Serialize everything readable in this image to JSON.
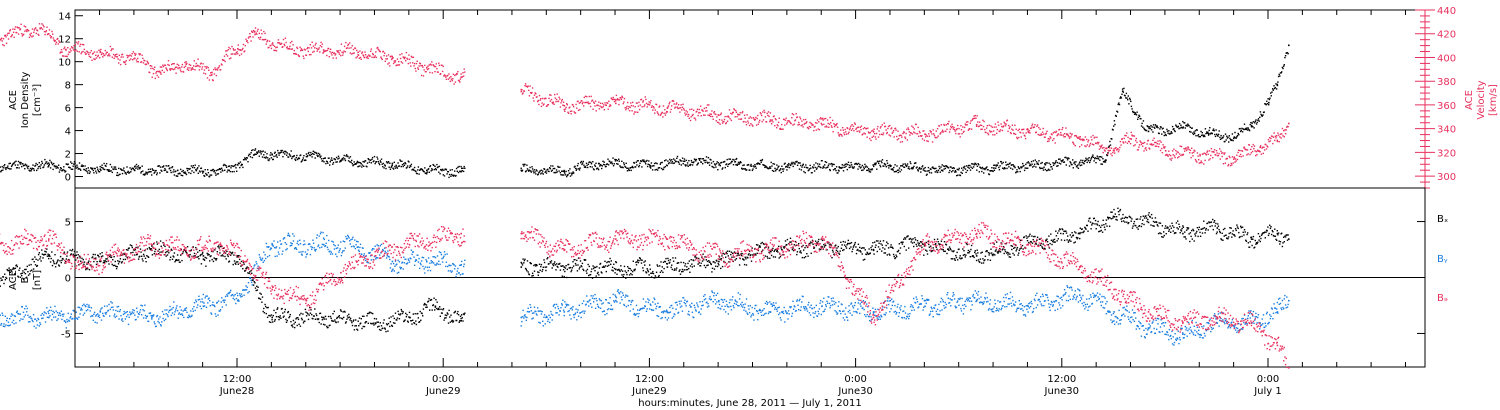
{
  "chart_data": [
    {
      "type": "scatter",
      "panel": "top",
      "ylabel": [
        "ACE",
        "Ion Density",
        "[cm⁻³]"
      ],
      "ylabel_right": [
        "ACE",
        "Velocity",
        "[km/s]"
      ],
      "ylim": [
        -1,
        14.5
      ],
      "yticks": [
        0,
        2,
        4,
        6,
        8,
        10,
        12,
        14
      ],
      "ylim_right": [
        290,
        440
      ],
      "yticks_right": [
        300,
        320,
        340,
        360,
        380,
        400,
        420,
        440
      ],
      "data_gap": [
        "June29 01:15",
        "June29 04:30"
      ],
      "series": [
        {
          "color": "#000000",
          "axis": "left",
          "x": [
            "June27 22:00",
            "June28 01:00",
            "June28 04:00",
            "June28 06:00",
            "June28 08:30",
            "June28 10:00",
            "June28 11:30",
            "June28 13:00",
            "June28 14:00",
            "June28 16:00",
            "June28 19:00",
            "June28 21:00",
            "June28 23:00",
            "June29 01:00",
            "June29 04:30",
            "June29 07:00",
            "June29 09:00",
            "June29 12:00",
            "June29 14:00",
            "June29 17:00",
            "June29 20:00",
            "June29 23:00",
            "June30 02:00",
            "June30 05:00",
            "June30 08:00",
            "June30 11:00",
            "June30 13:00",
            "June30 14:30",
            "June30 15:30",
            "June30 17:00",
            "June30 19:00",
            "June30 20:30",
            "June30 22:00",
            "June30 23:00",
            "July1 00:00",
            "July1 00:30",
            "July1 01:10"
          ],
          "y": [
            0.9,
            1.0,
            0.7,
            0.6,
            0.6,
            0.5,
            0.6,
            2.0,
            2.0,
            1.8,
            1.3,
            1.2,
            0.6,
            0.5,
            0.6,
            0.5,
            1.2,
            1.0,
            1.4,
            1.1,
            0.9,
            0.9,
            1.0,
            0.6,
            0.8,
            1.1,
            1.3,
            1.5,
            7.5,
            4.0,
            4.3,
            3.8,
            3.5,
            4.5,
            6.5,
            8.0,
            11.5
          ]
        },
        {
          "color": "#e8305e",
          "axis": "right",
          "x": [
            "June27 22:00",
            "June28 00:30",
            "June28 02:00",
            "June28 04:00",
            "June28 06:00",
            "June28 07:30",
            "June28 09:00",
            "June28 10:30",
            "June28 12:00",
            "June28 13:00",
            "June28 15:00",
            "June28 17:00",
            "June28 19:00",
            "June28 21:00",
            "June28 23:00",
            "June29 01:00",
            "June29 04:30",
            "June29 07:00",
            "June29 10:00",
            "June29 13:00",
            "June29 16:00",
            "June29 19:00",
            "June29 22:00",
            "June30 01:00",
            "June30 04:00",
            "June30 07:00",
            "June30 10:00",
            "June30 13:00",
            "June30 15:00",
            "June30 16:00",
            "June30 18:00",
            "June30 20:00",
            "June30 22:00",
            "June30 23:30",
            "July1 00:30",
            "July1 01:10"
          ],
          "y": [
            417,
            425,
            407,
            405,
            400,
            388,
            395,
            388,
            408,
            420,
            408,
            407,
            405,
            400,
            392,
            384,
            372,
            360,
            362,
            358,
            352,
            348,
            344,
            338,
            336,
            344,
            338,
            332,
            322,
            332,
            322,
            318,
            316,
            325,
            330,
            345
          ]
        }
      ]
    },
    {
      "type": "scatter",
      "panel": "bottom",
      "ylabel": [
        "ACE",
        "B",
        "[nT]"
      ],
      "ylim": [
        -8,
        8
      ],
      "yticks": [
        -5,
        0,
        5
      ],
      "data_gap": [
        "June29 01:15",
        "June29 04:30"
      ],
      "series": [
        {
          "name": "Bₓ",
          "color": "#000000",
          "x": [
            "June27 22:00",
            "June28 01:00",
            "June28 04:00",
            "June28 07:00",
            "June28 10:00",
            "June28 12:00",
            "June28 14:00",
            "June28 17:00",
            "June28 20:00",
            "June28 22:00",
            "June28 23:30",
            "June29 01:00",
            "June29 04:30",
            "June29 07:00",
            "June29 10:00",
            "June29 13:00",
            "June29 16:00",
            "June29 19:00",
            "June29 22:00",
            "June30 01:00",
            "June30 04:00",
            "June30 07:00",
            "June30 10:00",
            "June30 13:00",
            "June30 15:00",
            "June30 17:00",
            "June30 19:00",
            "June30 21:00",
            "June30 23:00",
            "July1 00:30",
            "July1 01:10"
          ],
          "y": [
            -0.5,
            2.0,
            1.5,
            2.5,
            2.0,
            2.0,
            -3.5,
            -3.5,
            -4.0,
            -3.5,
            -2.5,
            -3.8,
            1.0,
            1.0,
            0.8,
            1.0,
            1.5,
            2.5,
            2.8,
            2.5,
            3.0,
            2.0,
            3.0,
            4.0,
            5.5,
            5.0,
            4.0,
            4.5,
            3.5,
            4.0,
            3.5
          ]
        },
        {
          "name": "Bᵧ",
          "color": "#1a7ee0",
          "x": [
            "June27 22:00",
            "June28 01:00",
            "June28 04:00",
            "June28 07:00",
            "June28 10:00",
            "June28 12:00",
            "June28 14:00",
            "June28 17:00",
            "June28 19:00",
            "June28 21:00",
            "June28 23:00",
            "June29 01:00",
            "June29 04:30",
            "June29 07:00",
            "June29 10:00",
            "June29 13:00",
            "June29 16:00",
            "June29 19:00",
            "June29 22:00",
            "June30 01:00",
            "June30 04:00",
            "June30 07:00",
            "June30 10:00",
            "June30 13:00",
            "June30 15:00",
            "June30 17:00",
            "June30 19:00",
            "June30 21:00",
            "June30 23:00",
            "July1 00:30",
            "July1 01:10"
          ],
          "y": [
            -3.5,
            -3.5,
            -3.0,
            -3.5,
            -2.5,
            -2.0,
            3.0,
            3.0,
            2.8,
            1.5,
            1.5,
            1.2,
            -3.5,
            -3.0,
            -2.0,
            -3.0,
            -2.0,
            -3.0,
            -2.5,
            -3.0,
            -2.5,
            -2.0,
            -2.5,
            -1.5,
            -3.0,
            -4.5,
            -5.0,
            -4.0,
            -4.0,
            -3.0,
            -2.0
          ]
        },
        {
          "name": "Bₔ",
          "color": "#e8305e",
          "x": [
            "June27 22:00",
            "June28 01:00",
            "June28 03:00",
            "June28 05:00",
            "June28 07:00",
            "June28 09:00",
            "June28 11:00",
            "June28 12:30",
            "June28 14:00",
            "June28 16:00",
            "June28 18:00",
            "June28 20:00",
            "June28 22:00",
            "June29 01:00",
            "June29 04:30",
            "June29 07:00",
            "June29 10:00",
            "June29 13:00",
            "June29 16:00",
            "June29 19:00",
            "June29 22:00",
            "June30 01:00",
            "June30 04:00",
            "June30 07:00",
            "June30 10:00",
            "June30 13:00",
            "June30 15:00",
            "June30 17:00",
            "June30 19:00",
            "June30 21:00",
            "June30 23:00",
            "July1 00:30",
            "July1 01:10"
          ],
          "y": [
            3.0,
            3.5,
            1.0,
            2.0,
            3.0,
            2.5,
            3.0,
            1.5,
            -1.0,
            -2.0,
            0.5,
            2.0,
            3.0,
            4.0,
            4.0,
            2.5,
            3.5,
            3.5,
            2.0,
            2.5,
            3.5,
            -3.5,
            3.0,
            4.0,
            3.0,
            1.0,
            -1.0,
            -3.0,
            -4.0,
            -3.5,
            -4.0,
            -6.0,
            -8.0
          ]
        }
      ]
    }
  ],
  "x_axis": {
    "ticks": [
      {
        "time": "12:00",
        "day": "June28"
      },
      {
        "time": "0:00",
        "day": "June29"
      },
      {
        "time": "12:00",
        "day": "June29"
      },
      {
        "time": "0:00",
        "day": "June30"
      },
      {
        "time": "12:00",
        "day": "June30"
      },
      {
        "time": "0:00",
        "day": "July 1"
      }
    ],
    "label": "hours:minutes, June 28, 2011 — July  1, 2011"
  },
  "legend": {
    "bx": "Bₓ",
    "by": "Bᵧ",
    "bz": "Bₔ"
  },
  "colors": {
    "density": "#000000",
    "velocity": "#e8305e",
    "bx": "#000000",
    "by": "#1a7ee0",
    "bz": "#e8305e",
    "axis": "#000000"
  }
}
